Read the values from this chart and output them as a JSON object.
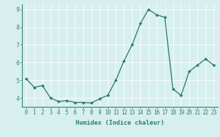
{
  "x": [
    0,
    1,
    2,
    3,
    4,
    5,
    6,
    7,
    8,
    9,
    10,
    11,
    12,
    13,
    14,
    15,
    16,
    17,
    18,
    19,
    20,
    21,
    22,
    23
  ],
  "y": [
    5.1,
    4.6,
    4.7,
    4.0,
    3.8,
    3.85,
    3.75,
    3.75,
    3.72,
    3.95,
    4.15,
    5.0,
    6.1,
    7.0,
    8.2,
    9.0,
    8.7,
    8.55,
    4.5,
    4.15,
    5.5,
    5.85,
    6.2,
    5.85
  ],
  "line_color": "#2e7d6e",
  "marker": "D",
  "marker_size": 2,
  "bg_color": "#d7efef",
  "grid_color": "#ffffff",
  "xlabel": "Humidex (Indice chaleur)",
  "ylim": [
    3.5,
    9.3
  ],
  "xlim": [
    -0.5,
    23.5
  ],
  "yticks": [
    4,
    5,
    6,
    7,
    8,
    9
  ],
  "xticks": [
    0,
    1,
    2,
    3,
    4,
    5,
    6,
    7,
    8,
    9,
    10,
    11,
    12,
    13,
    14,
    15,
    16,
    17,
    18,
    19,
    20,
    21,
    22,
    23
  ],
  "tick_color": "#2e7d6e",
  "label_fontsize": 6.5,
  "tick_fontsize": 5.5
}
